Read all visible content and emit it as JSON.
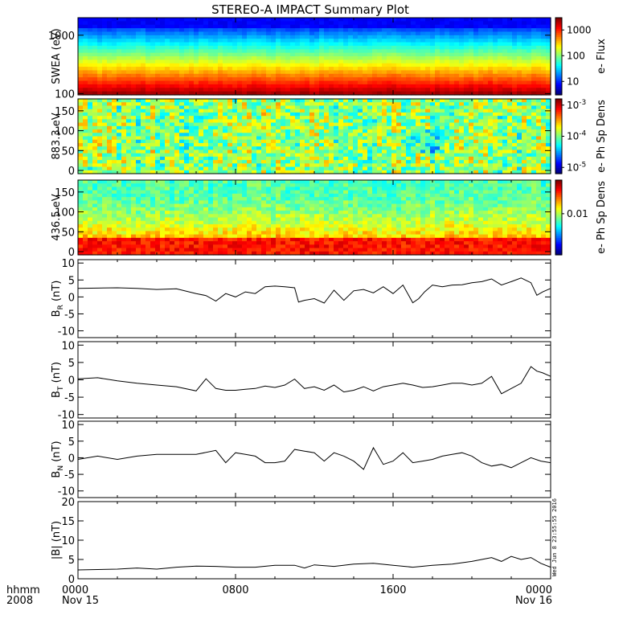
{
  "title": "STEREO-A IMPACT Summary Plot",
  "timestamp": "Wed Jun 8 23:55:55 2016",
  "chart_data": [
    {
      "type": "heatmap",
      "name": "swea-spectrogram",
      "ylabel": "SWEA (eV)",
      "yscale": "log",
      "ylim": [
        95,
        2000
      ],
      "yticks": [
        {
          "v": 100,
          "label": "100"
        },
        {
          "v": 1000,
          "label": "1000"
        }
      ],
      "colorbar_label": "e- Flux",
      "colorbar_scale": "log",
      "colorbar_range": [
        3,
        3000
      ],
      "colorbar_ticks": [
        {
          "v": 10,
          "label": "10"
        },
        {
          "v": 100,
          "label": "100"
        },
        {
          "v": 1000,
          "label": "1000"
        }
      ]
    },
    {
      "type": "heatmap",
      "name": "pad-883",
      "ylabel": "883.3 eV",
      "ylim": [
        -8,
        180
      ],
      "yticks": [
        {
          "v": 0,
          "label": "0"
        },
        {
          "v": 50,
          "label": "50"
        },
        {
          "v": 100,
          "label": "100"
        },
        {
          "v": 150,
          "label": "150"
        }
      ],
      "colorbar_label": "e- Ph Sp Dens",
      "colorbar_scale": "log",
      "colorbar_ticks": [
        {
          "v": -3,
          "label": "10",
          "exp": "-3"
        },
        {
          "v": -4,
          "label": "10",
          "exp": "-4"
        },
        {
          "v": -5,
          "label": "10",
          "exp": "-5"
        }
      ]
    },
    {
      "type": "heatmap",
      "name": "pad-436",
      "ylabel": "436.5 eV",
      "ylim": [
        -8,
        180
      ],
      "yticks": [
        {
          "v": 0,
          "label": "0"
        },
        {
          "v": 50,
          "label": "50"
        },
        {
          "v": 100,
          "label": "100"
        },
        {
          "v": 150,
          "label": "150"
        }
      ],
      "colorbar_label": "e- Ph Sp Dens",
      "colorbar_scale": "log",
      "colorbar_ticks": [
        {
          "v": 0.01,
          "label": "0.01"
        }
      ]
    },
    {
      "type": "line",
      "name": "br",
      "ylabel": "B",
      "ylabel_sub": "R",
      "ylabel_unit": " (nT)",
      "ylim": [
        -12,
        11
      ],
      "yticks": [
        {
          "v": -10,
          "label": "-10"
        },
        {
          "v": -5,
          "label": "-5"
        },
        {
          "v": 0,
          "label": "0"
        },
        {
          "v": 5,
          "label": "5"
        },
        {
          "v": 10,
          "label": "10"
        }
      ],
      "x": [
        0,
        1,
        2,
        3,
        4,
        5,
        6,
        6.5,
        7,
        7.5,
        8,
        8.5,
        9,
        9.5,
        10,
        10.5,
        11,
        11.2,
        11.5,
        12,
        12.5,
        13,
        13.5,
        14,
        14.5,
        15,
        15.5,
        16,
        16.5,
        17,
        17.3,
        17.6,
        18,
        18.5,
        19,
        19.5,
        20,
        20.5,
        21,
        21.5,
        22,
        22.5,
        23,
        23.3,
        23.6,
        24
      ],
      "y": [
        2.5,
        2.6,
        2.7,
        2.5,
        2.2,
        2.4,
        1.0,
        0.4,
        -1.2,
        1.0,
        0.0,
        1.5,
        1.0,
        3.0,
        3.2,
        3.0,
        2.7,
        -1.5,
        -1.0,
        -0.5,
        -1.8,
        2.0,
        -1.0,
        1.8,
        2.2,
        1.2,
        3.0,
        1.0,
        3.5,
        -1.7,
        -0.5,
        1.5,
        3.5,
        3.0,
        3.5,
        3.6,
        4.2,
        4.5,
        5.3,
        3.5,
        4.5,
        5.6,
        4.2,
        0.5,
        1.5,
        2.5
      ]
    },
    {
      "type": "line",
      "name": "bt",
      "ylabel": "B",
      "ylabel_sub": "T",
      "ylabel_unit": " (nT)",
      "ylim": [
        -11,
        11
      ],
      "yticks": [
        {
          "v": -10,
          "label": "-10"
        },
        {
          "v": -5,
          "label": "-5"
        },
        {
          "v": 0,
          "label": "0"
        },
        {
          "v": 5,
          "label": "5"
        },
        {
          "v": 10,
          "label": "10"
        }
      ],
      "x": [
        0,
        1,
        2,
        3,
        4,
        5,
        6,
        6.5,
        7,
        7.5,
        8,
        8.5,
        9,
        9.5,
        10,
        10.5,
        11,
        11.5,
        12,
        12.5,
        13,
        13.5,
        14,
        14.5,
        15,
        15.5,
        16,
        16.5,
        17,
        17.5,
        18,
        18.5,
        19,
        19.5,
        20,
        20.5,
        21,
        21.5,
        22,
        22.5,
        23,
        23.3,
        23.6,
        24
      ],
      "y": [
        0.3,
        0.6,
        -0.3,
        -1.0,
        -1.5,
        -2.0,
        -3.2,
        0.3,
        -2.5,
        -3.0,
        -3.0,
        -2.7,
        -2.5,
        -1.8,
        -2.2,
        -1.5,
        0.2,
        -2.5,
        -2.0,
        -3.0,
        -1.5,
        -3.5,
        -3.0,
        -2.0,
        -3.2,
        -2.0,
        -1.5,
        -1.0,
        -1.5,
        -2.2,
        -2.0,
        -1.5,
        -1.0,
        -1.0,
        -1.5,
        -1.0,
        1.0,
        -4.0,
        -2.5,
        -1.0,
        3.8,
        2.5,
        2.0,
        1.0
      ]
    },
    {
      "type": "line",
      "name": "bn",
      "ylabel": "B",
      "ylabel_sub": "N",
      "ylabel_unit": " (nT)",
      "ylim": [
        -12,
        11
      ],
      "yticks": [
        {
          "v": -10,
          "label": "-10"
        },
        {
          "v": -5,
          "label": "-5"
        },
        {
          "v": 0,
          "label": "0"
        },
        {
          "v": 5,
          "label": "5"
        },
        {
          "v": 10,
          "label": "10"
        }
      ],
      "x": [
        0,
        1,
        2,
        3,
        4,
        5,
        6,
        7,
        7.5,
        8,
        8.5,
        9,
        9.5,
        10,
        10.5,
        11,
        11.5,
        12,
        12.5,
        13,
        13.5,
        14,
        14.5,
        15,
        15.5,
        16,
        16.5,
        17,
        17.5,
        18,
        18.5,
        19,
        19.5,
        20,
        20.5,
        21,
        21.5,
        22,
        22.5,
        23,
        23.5,
        24
      ],
      "y": [
        -0.5,
        0.5,
        -0.5,
        0.5,
        1.0,
        1.0,
        1.0,
        2.2,
        -1.5,
        1.5,
        1.0,
        0.5,
        -1.5,
        -1.5,
        -1.0,
        2.5,
        2.0,
        1.5,
        -1.0,
        1.5,
        0.5,
        -1.0,
        -3.5,
        3.0,
        -2.0,
        -1.0,
        1.5,
        -1.5,
        -1.0,
        -0.5,
        0.5,
        1.0,
        1.5,
        0.5,
        -1.5,
        -2.5,
        -2.0,
        -3.0,
        -1.5,
        0.0,
        -1.0,
        -1.5
      ]
    },
    {
      "type": "line",
      "name": "btot",
      "ylabel": "|B| (nT)",
      "ylim": [
        0,
        20
      ],
      "yticks": [
        {
          "v": 0,
          "label": "0"
        },
        {
          "v": 5,
          "label": "5"
        },
        {
          "v": 10,
          "label": "10"
        },
        {
          "v": 15,
          "label": "15"
        },
        {
          "v": 20,
          "label": "20"
        }
      ],
      "x": [
        0,
        1,
        2,
        3,
        4,
        5,
        6,
        7,
        8,
        9,
        10,
        11,
        11.5,
        12,
        13,
        14,
        15,
        16,
        17,
        18,
        19,
        20,
        20.5,
        21,
        21.5,
        22,
        22.5,
        23,
        23.5,
        24
      ],
      "y": [
        2.3,
        2.4,
        2.5,
        2.8,
        2.5,
        3.0,
        3.3,
        3.2,
        3.0,
        3.0,
        3.5,
        3.5,
        2.8,
        3.6,
        3.2,
        3.8,
        4.0,
        3.5,
        3.0,
        3.5,
        3.8,
        4.5,
        5.0,
        5.5,
        4.5,
        5.8,
        5.0,
        5.5,
        4.0,
        3.0
      ]
    }
  ],
  "x_axis": {
    "left_label_line1": "hhmm",
    "left_label_line2": "2008",
    "ticks": [
      {
        "x": 0,
        "line1": "0000",
        "line2": "Nov 15"
      },
      {
        "x": 8,
        "line1": "0800",
        "line2": ""
      },
      {
        "x": 16,
        "line1": "1600",
        "line2": ""
      },
      {
        "x": 24,
        "line1": "0000",
        "line2": "Nov 16"
      }
    ],
    "range_hours": [
      0,
      24
    ]
  }
}
